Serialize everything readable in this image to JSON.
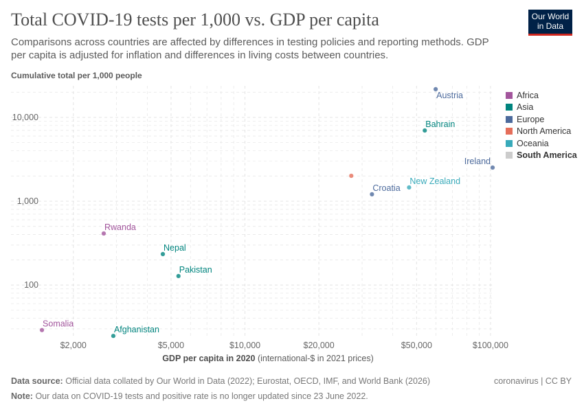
{
  "title": "Total COVID-19 tests per 1,000 vs. GDP per capita",
  "subtitle": "Comparisons across countries are affected by differences in testing policies and reporting methods. GDP per capita is adjusted for inflation and differences in living costs between countries.",
  "logo": "Our World in Data",
  "footer": {
    "source_label": "Data source:",
    "source": "Official data collated by Our World in Data (2022); Eurostat, OECD, IMF, and World Bank (2026)",
    "note_label": "Note:",
    "note": "Our data on COVID-19 tests and positive rate is no longer updated since 23 June 2022.",
    "license": "coronavirus | CC BY"
  },
  "chart_data": {
    "type": "scatter",
    "ylabel": "Cumulative total per 1,000 people",
    "xlabel_bold": "GDP per capita in 2020",
    "xlabel_rest": "(international-$ in 2021 prices)",
    "x_scale": "log",
    "y_scale": "log",
    "xlim": [
      1480,
      104000
    ],
    "ylim": [
      23,
      23800
    ],
    "grid": true,
    "x_ticks": [
      {
        "v": 2000,
        "label": "$2,000"
      },
      {
        "v": 5000,
        "label": "$5,000"
      },
      {
        "v": 10000,
        "label": "$10,000"
      },
      {
        "v": 20000,
        "label": "$20,000"
      },
      {
        "v": 50000,
        "label": "$50,000"
      },
      {
        "v": 100000,
        "label": "$100,000"
      }
    ],
    "y_ticks": [
      {
        "v": 100,
        "label": "100"
      },
      {
        "v": 1000,
        "label": "1,000"
      },
      {
        "v": 10000,
        "label": "10,000"
      }
    ],
    "legend_position": "right",
    "legend": [
      {
        "name": "Africa",
        "color": "#a2559c"
      },
      {
        "name": "Asia",
        "color": "#00847e"
      },
      {
        "name": "Europe",
        "color": "#4c6a9c"
      },
      {
        "name": "North America",
        "color": "#e56e5a"
      },
      {
        "name": "Oceania",
        "color": "#38aaba"
      },
      {
        "name": "South America",
        "color": "#cccccc"
      }
    ],
    "points": [
      {
        "label": "Austria",
        "region": "Europe",
        "x": 59800,
        "y": 21700
      },
      {
        "label": "Bahrain",
        "region": "Asia",
        "x": 54000,
        "y": 6980
      },
      {
        "label": "Ireland",
        "region": "Europe",
        "x": 102000,
        "y": 2520
      },
      {
        "label": "",
        "region": "North America",
        "x": 27100,
        "y": 2010
      },
      {
        "label": "New Zealand",
        "region": "Oceania",
        "x": 46600,
        "y": 1460
      },
      {
        "label": "Croatia",
        "region": "Europe",
        "x": 32900,
        "y": 1210
      },
      {
        "label": "Rwanda",
        "region": "Africa",
        "x": 2660,
        "y": 412
      },
      {
        "label": "Nepal",
        "region": "Asia",
        "x": 4630,
        "y": 234
      },
      {
        "label": "Pakistan",
        "region": "Asia",
        "x": 5360,
        "y": 128
      },
      {
        "label": "Somalia",
        "region": "Africa",
        "x": 1490,
        "y": 29
      },
      {
        "label": "Afghanistan",
        "region": "Asia",
        "x": 2910,
        "y": 24.7
      }
    ]
  }
}
